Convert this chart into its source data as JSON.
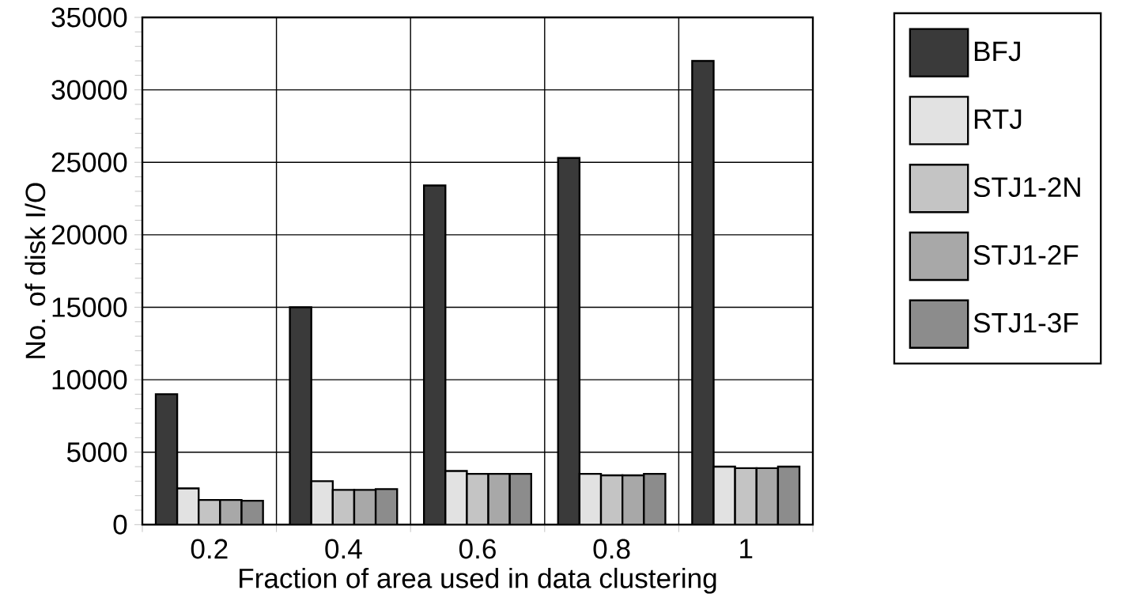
{
  "chart_data": {
    "type": "bar",
    "xlabel": "Fraction of area used in data clustering",
    "ylabel": "No. of disk I/O",
    "categories": [
      "0.2",
      "0.4",
      "0.6",
      "0.8",
      "1"
    ],
    "series": [
      {
        "name": "BFJ",
        "color": "#3a3a3a",
        "values": [
          9000,
          15000,
          23400,
          25300,
          32000
        ]
      },
      {
        "name": "RTJ",
        "color": "#e2e2e2",
        "values": [
          2500,
          3000,
          3700,
          3500,
          4000
        ]
      },
      {
        "name": "STJ1-2N",
        "color": "#c4c4c4",
        "values": [
          1700,
          2400,
          3500,
          3400,
          3900
        ]
      },
      {
        "name": "STJ1-2F",
        "color": "#a8a8a8",
        "values": [
          1700,
          2400,
          3500,
          3400,
          3900
        ]
      },
      {
        "name": "STJ1-3F",
        "color": "#8c8c8c",
        "values": [
          1650,
          2450,
          3500,
          3500,
          4000
        ]
      }
    ],
    "ylim": [
      0,
      35000
    ],
    "yticks": [
      0,
      5000,
      10000,
      15000,
      20000,
      25000,
      30000,
      35000
    ],
    "grid": true,
    "legend": "top right"
  }
}
